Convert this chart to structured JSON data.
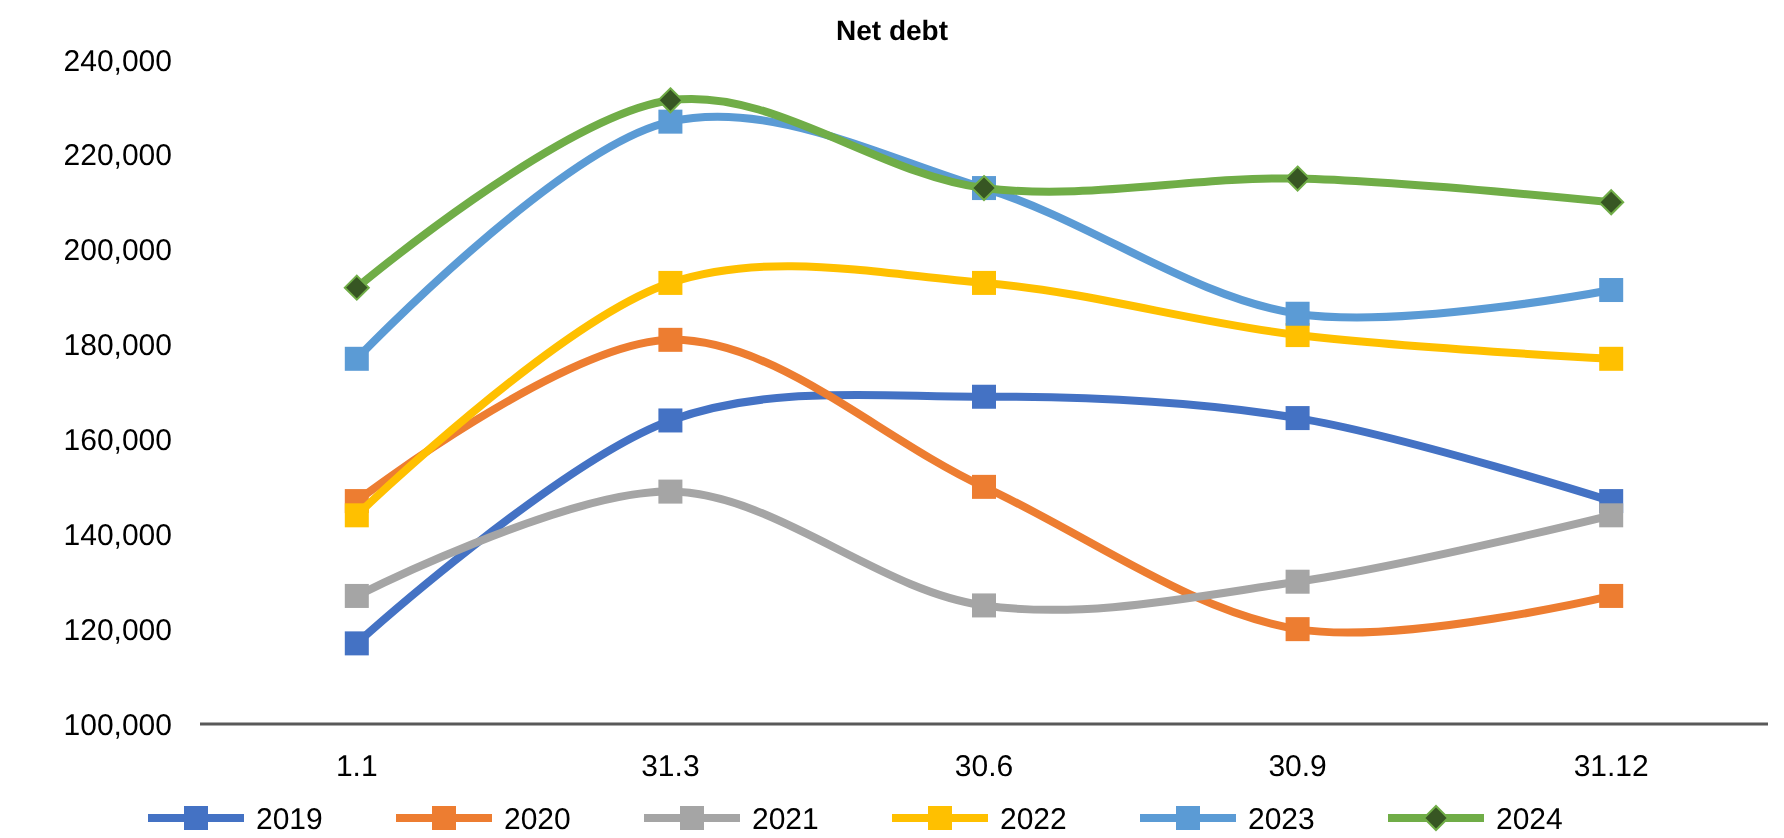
{
  "chart_data": {
    "type": "line",
    "title": "Net debt",
    "categories": [
      "1.1",
      "31.3",
      "30.6",
      "30.9",
      "31.12"
    ],
    "ylim": [
      100000,
      240000
    ],
    "yticks": [
      {
        "value": 100000,
        "label": "100,000"
      },
      {
        "value": 120000,
        "label": "120,000"
      },
      {
        "value": 140000,
        "label": "140,000"
      },
      {
        "value": 160000,
        "label": "160,000"
      },
      {
        "value": 180000,
        "label": "180,000"
      },
      {
        "value": 200000,
        "label": "200,000"
      },
      {
        "value": 220000,
        "label": "220,000"
      },
      {
        "value": 240000,
        "label": "240,000"
      }
    ],
    "grid": false,
    "legend": "bottom",
    "series": [
      {
        "name": "2019",
        "color": "#4472c4",
        "marker": "square",
        "values": [
          117000,
          164000,
          169000,
          164500,
          147000
        ]
      },
      {
        "name": "2020",
        "color": "#ed7d31",
        "marker": "square",
        "values": [
          147000,
          181000,
          150000,
          120000,
          127000
        ]
      },
      {
        "name": "2021",
        "color": "#a5a5a5",
        "marker": "square",
        "values": [
          127000,
          149000,
          125000,
          130000,
          144000
        ]
      },
      {
        "name": "2022",
        "color": "#ffc000",
        "marker": "square",
        "values": [
          144000,
          193000,
          193000,
          182000,
          177000
        ]
      },
      {
        "name": "2023",
        "color": "#5b9bd5",
        "marker": "square",
        "values": [
          177000,
          227000,
          213000,
          186500,
          191500
        ]
      },
      {
        "name": "2024",
        "color": "#70ad47",
        "marker": "diamond",
        "values": [
          192000,
          231500,
          213000,
          215000,
          210000
        ]
      }
    ]
  }
}
